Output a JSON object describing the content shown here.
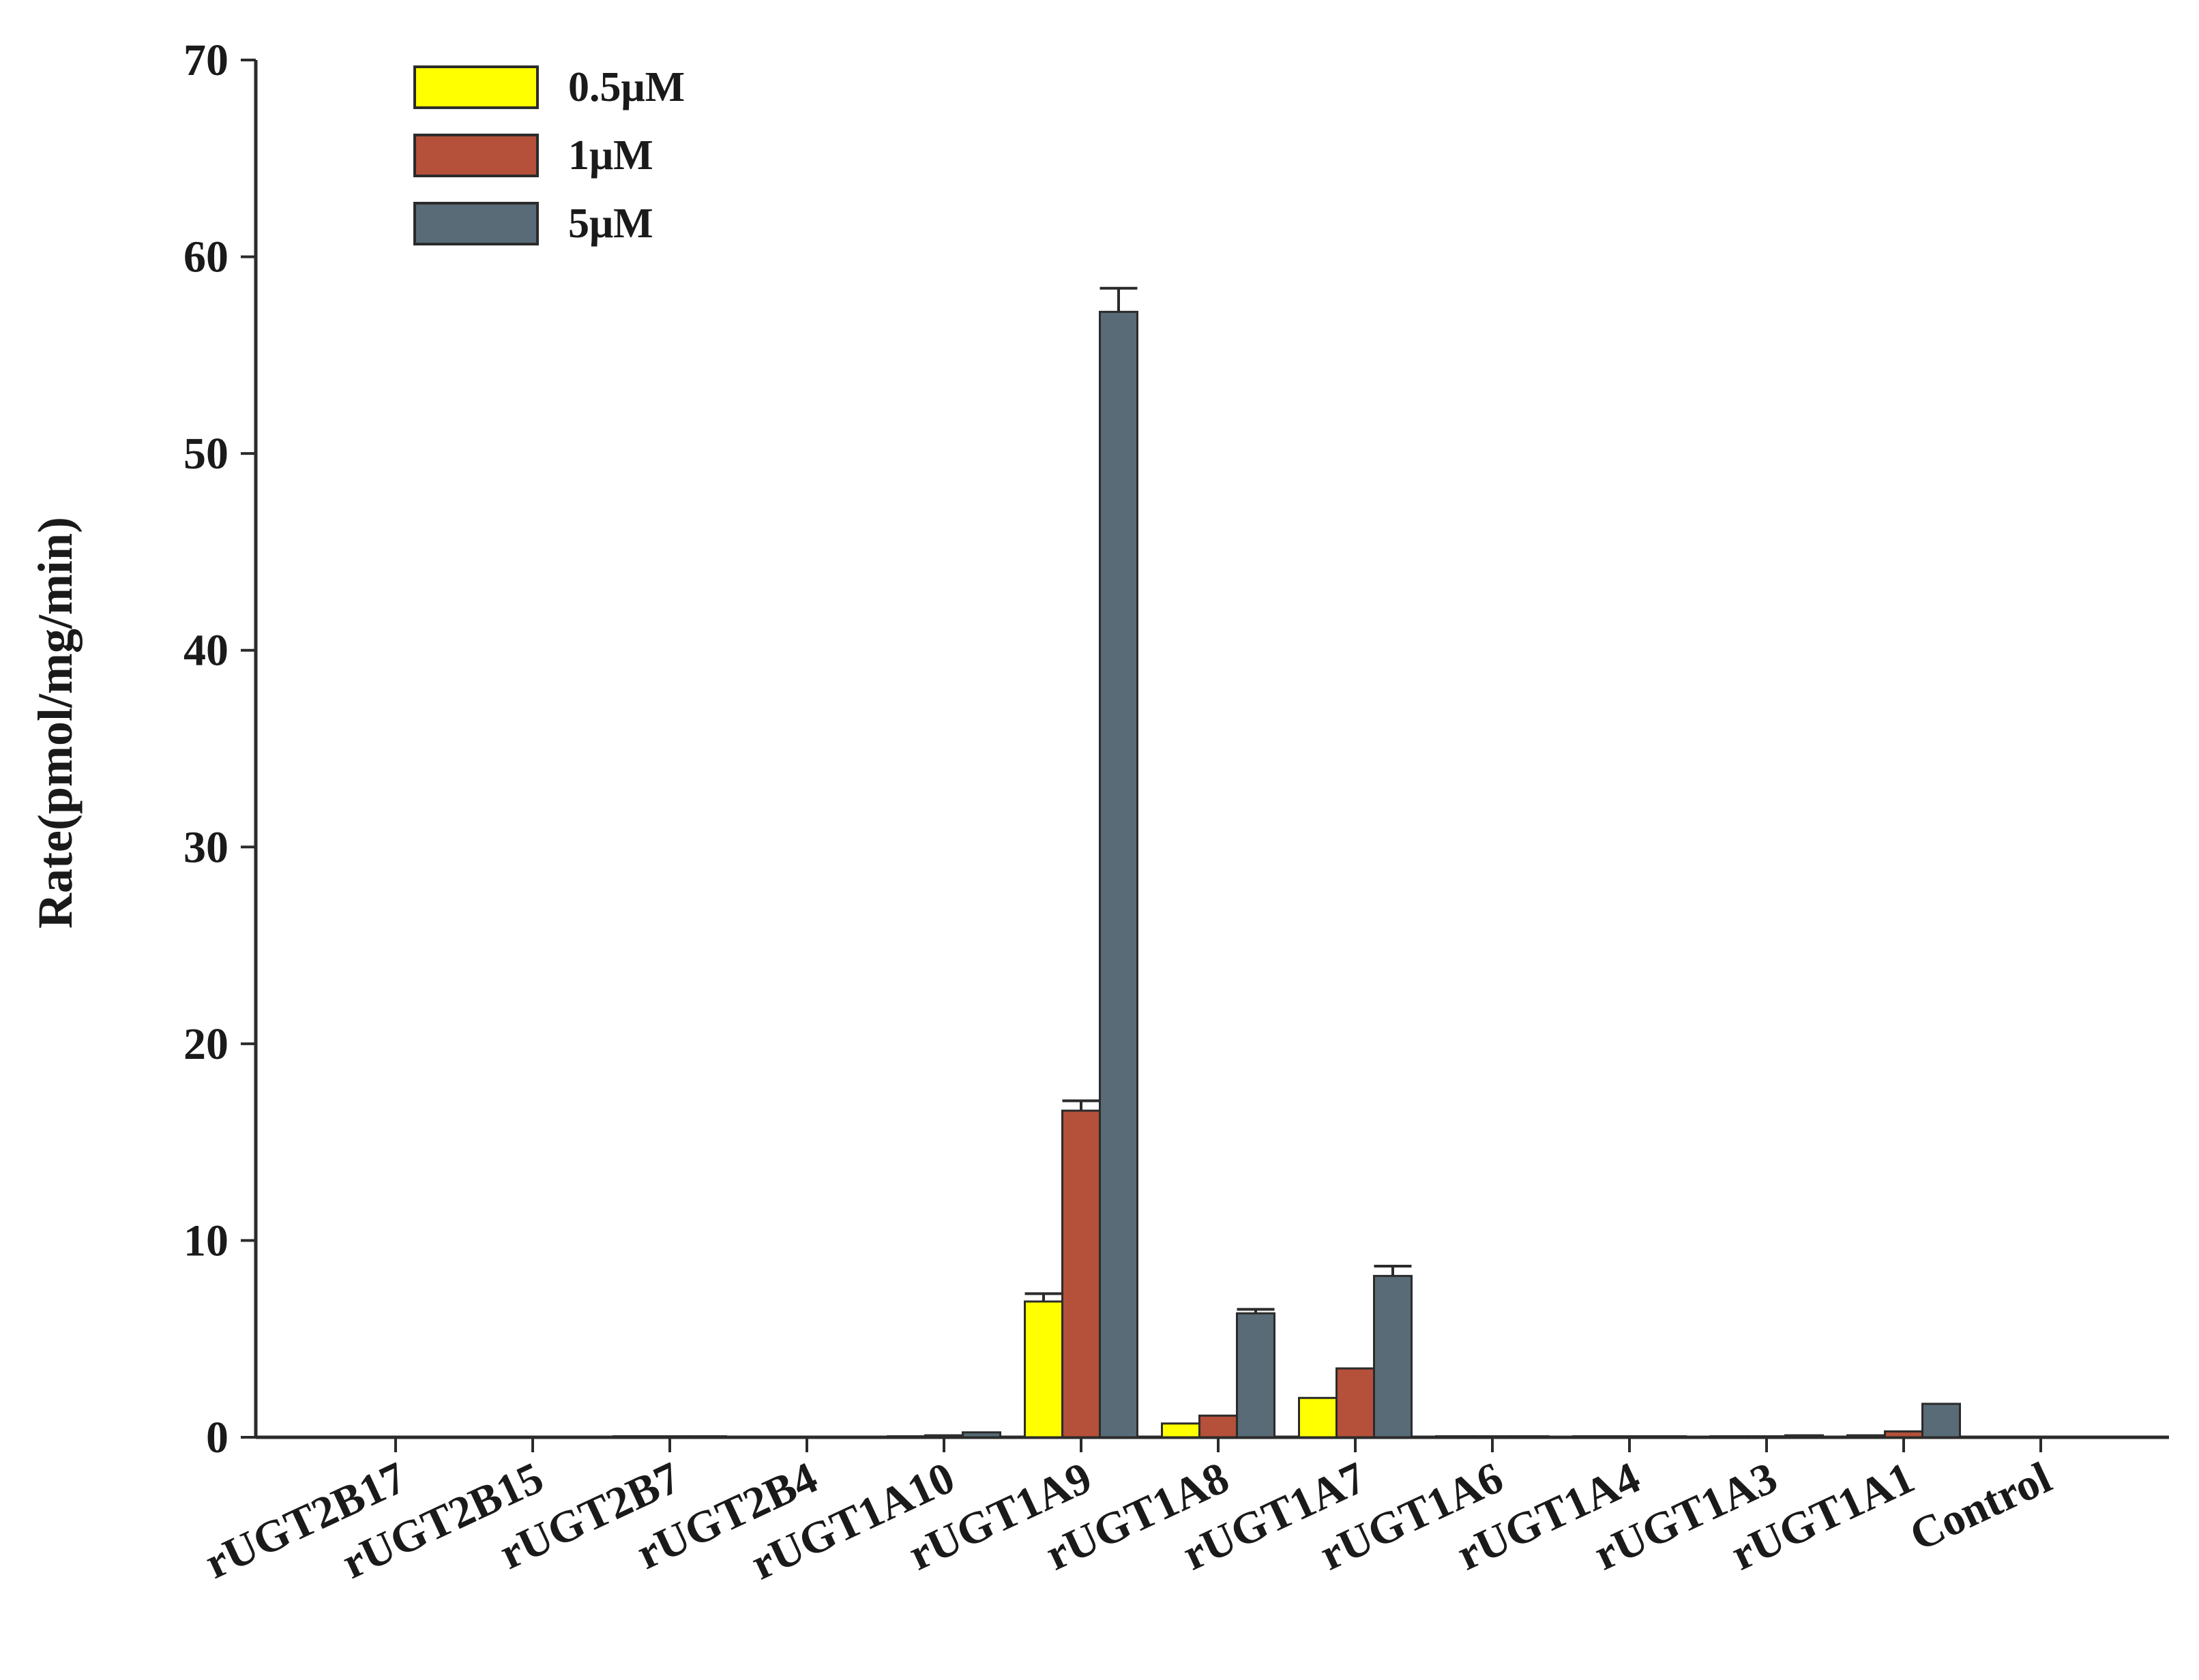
{
  "chart_data": {
    "type": "bar",
    "ylabel": "Rate(pmol/mg/min)",
    "xlabel": "",
    "ylim": [
      0,
      70
    ],
    "yticks": [
      "0",
      "10",
      "20",
      "30",
      "40",
      "50",
      "60",
      "70"
    ],
    "categories": [
      "rUGT2B17",
      "rUGT2B15",
      "rUGT2B7",
      "rUGT2B4",
      "rUGT1A10",
      "rUGT1A9",
      "rUGT1A8",
      "rUGT1A7",
      "rUGT1A6",
      "rUGT1A4",
      "rUGT1A3",
      "rUGT1A1",
      "Control"
    ],
    "series": [
      {
        "name": "0.5μM",
        "color": "#ffff00",
        "values": [
          0,
          0,
          0.05,
          0,
          0.05,
          6.9,
          0.7,
          2.0,
          0.05,
          0.05,
          0.05,
          0.1,
          0
        ],
        "errors": [
          0,
          0,
          0,
          0,
          0,
          0.4,
          0,
          0,
          0,
          0,
          0,
          0,
          0
        ]
      },
      {
        "name": "1μM",
        "color": "#b5503a",
        "values": [
          0,
          0,
          0.05,
          0,
          0.1,
          16.6,
          1.1,
          3.5,
          0.05,
          0.05,
          0.05,
          0.3,
          0
        ],
        "errors": [
          0,
          0,
          0,
          0,
          0,
          0.5,
          0,
          0,
          0,
          0,
          0,
          0,
          0
        ]
      },
      {
        "name": "5μM",
        "color": "#586b76",
        "values": [
          0,
          0,
          0.05,
          0,
          0.25,
          57.2,
          6.3,
          8.2,
          0.05,
          0.05,
          0.1,
          1.7,
          0
        ],
        "errors": [
          0,
          0,
          0,
          0,
          0,
          1.2,
          0.2,
          0.5,
          0,
          0,
          0,
          0,
          0
        ]
      }
    ],
    "legend_position": "top-left"
  }
}
